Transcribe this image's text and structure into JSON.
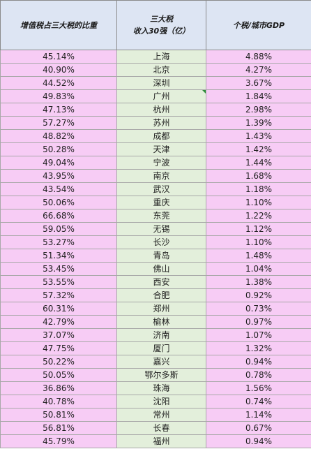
{
  "headers": {
    "col1": "增值税占三大税的比重",
    "col2_line1": "三大税",
    "col2_line2": "收入30强（亿）",
    "col3": "个税/城市GDP"
  },
  "rows": [
    {
      "vat_share": "45.14%",
      "city": "上海",
      "income_tax_gdp": "4.88%"
    },
    {
      "vat_share": "40.90%",
      "city": "北京",
      "income_tax_gdp": "4.27%"
    },
    {
      "vat_share": "44.52%",
      "city": "深圳",
      "income_tax_gdp": "3.67%"
    },
    {
      "vat_share": "49.83%",
      "city": "广州",
      "income_tax_gdp": "1.84%"
    },
    {
      "vat_share": "47.13%",
      "city": "杭州",
      "income_tax_gdp": "2.98%"
    },
    {
      "vat_share": "57.27%",
      "city": "苏州",
      "income_tax_gdp": "1.39%"
    },
    {
      "vat_share": "48.82%",
      "city": "成都",
      "income_tax_gdp": "1.43%"
    },
    {
      "vat_share": "50.28%",
      "city": "天津",
      "income_tax_gdp": "1.42%"
    },
    {
      "vat_share": "49.04%",
      "city": "宁波",
      "income_tax_gdp": "1.44%"
    },
    {
      "vat_share": "43.95%",
      "city": "南京",
      "income_tax_gdp": "1.68%"
    },
    {
      "vat_share": "43.54%",
      "city": "武汉",
      "income_tax_gdp": "1.18%"
    },
    {
      "vat_share": "50.06%",
      "city": "重庆",
      "income_tax_gdp": "1.10%"
    },
    {
      "vat_share": "66.68%",
      "city": "东莞",
      "income_tax_gdp": "1.22%"
    },
    {
      "vat_share": "59.05%",
      "city": "无锡",
      "income_tax_gdp": "1.12%"
    },
    {
      "vat_share": "53.27%",
      "city": "长沙",
      "income_tax_gdp": "1.10%"
    },
    {
      "vat_share": "51.34%",
      "city": "青岛",
      "income_tax_gdp": "1.48%"
    },
    {
      "vat_share": "53.45%",
      "city": "佛山",
      "income_tax_gdp": "1.04%"
    },
    {
      "vat_share": "53.55%",
      "city": "西安",
      "income_tax_gdp": "1.38%"
    },
    {
      "vat_share": "57.32%",
      "city": "合肥",
      "income_tax_gdp": "0.92%"
    },
    {
      "vat_share": "60.31%",
      "city": "郑州",
      "income_tax_gdp": "0.73%"
    },
    {
      "vat_share": "42.79%",
      "city": "榆林",
      "income_tax_gdp": "0.97%"
    },
    {
      "vat_share": "37.07%",
      "city": "济南",
      "income_tax_gdp": "1.07%"
    },
    {
      "vat_share": "47.75%",
      "city": "厦门",
      "income_tax_gdp": "1.32%"
    },
    {
      "vat_share": "50.22%",
      "city": "嘉兴",
      "income_tax_gdp": "0.94%"
    },
    {
      "vat_share": "50.05%",
      "city": "鄂尔多斯",
      "income_tax_gdp": "0.78%"
    },
    {
      "vat_share": "36.86%",
      "city": "珠海",
      "income_tax_gdp": "1.56%"
    },
    {
      "vat_share": "40.78%",
      "city": "沈阳",
      "income_tax_gdp": "0.74%"
    },
    {
      "vat_share": "50.81%",
      "city": "常州",
      "income_tax_gdp": "1.14%"
    },
    {
      "vat_share": "56.81%",
      "city": "长春",
      "income_tax_gdp": "0.67%"
    },
    {
      "vat_share": "45.79%",
      "city": "福州",
      "income_tax_gdp": "0.94%"
    }
  ]
}
